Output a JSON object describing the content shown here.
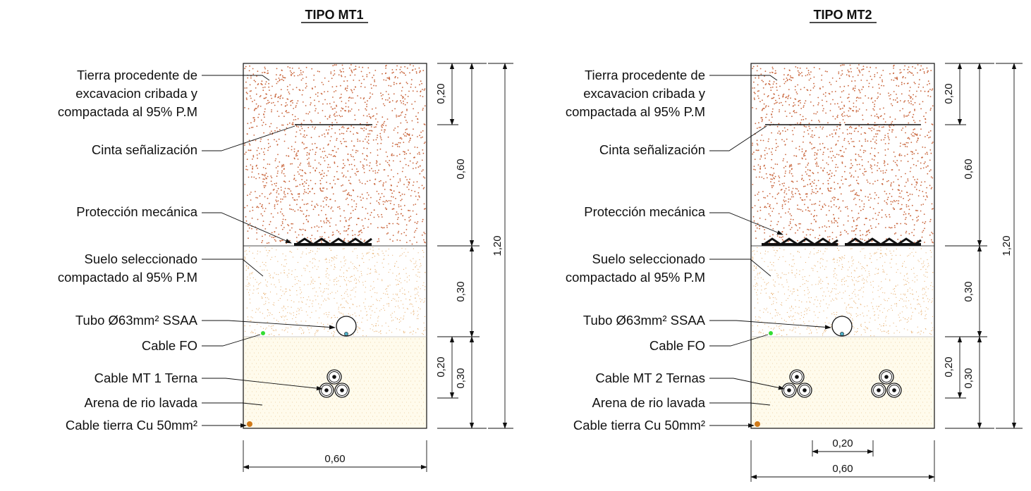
{
  "sections": [
    {
      "id": "mt1",
      "title": "TIPO MT1",
      "labels": {
        "tierra": [
          "Tierra procedente de",
          "excavacion cribada y",
          "compactada al 95% P.M"
        ],
        "cinta": "Cinta señalización",
        "proteccion": "Protección mecánica",
        "suelo": [
          "Suelo seleccionado",
          "compactado al 95% P.M"
        ],
        "tubo": "Tubo Ø63mm² SSAA",
        "fo": "Cable FO",
        "cable_mt": "Cable MT 1 Terna",
        "arena": "Arena de rio lavada",
        "tierra_cu": "Cable tierra Cu 50mm²"
      },
      "dims": {
        "d020_top": "0,20",
        "d060": "0,60",
        "d030_mid": "0,30",
        "d020_bottom": "0,20",
        "d030_bottom": "0,30",
        "d120": "1,20",
        "width": "0,60"
      }
    },
    {
      "id": "mt2",
      "title": "TIPO MT2",
      "labels": {
        "tierra": [
          "Tierra procedente de",
          "excavacion cribada y",
          "compactada al 95% P.M"
        ],
        "cinta": "Cinta señalización",
        "proteccion": "Protección mecánica",
        "suelo": [
          "Suelo seleccionado",
          "compactado al 95% P.M"
        ],
        "tubo": "Tubo Ø63mm² SSAA",
        "fo": "Cable FO",
        "cable_mt": "Cable MT 2 Ternas",
        "arena": "Arena de rio lavada",
        "tierra_cu": "Cable tierra Cu 50mm²"
      },
      "dims": {
        "d020_top": "0,20",
        "d060": "0,60",
        "d030_mid": "0,30",
        "d020_bottom": "0,20",
        "d030_bottom": "0,30",
        "d120": "1,20",
        "width": "0,60",
        "spacing": "0,20"
      }
    }
  ],
  "colors": {
    "tierra_dots": "#c8643a",
    "suelo_dots": "#e8b070",
    "arena_fill": "#fffbec",
    "arena_dots": "#e6c890",
    "fo_cable": "#33dd33",
    "tierra_cu_cable": "#d07a1a",
    "lines": "#111111"
  }
}
